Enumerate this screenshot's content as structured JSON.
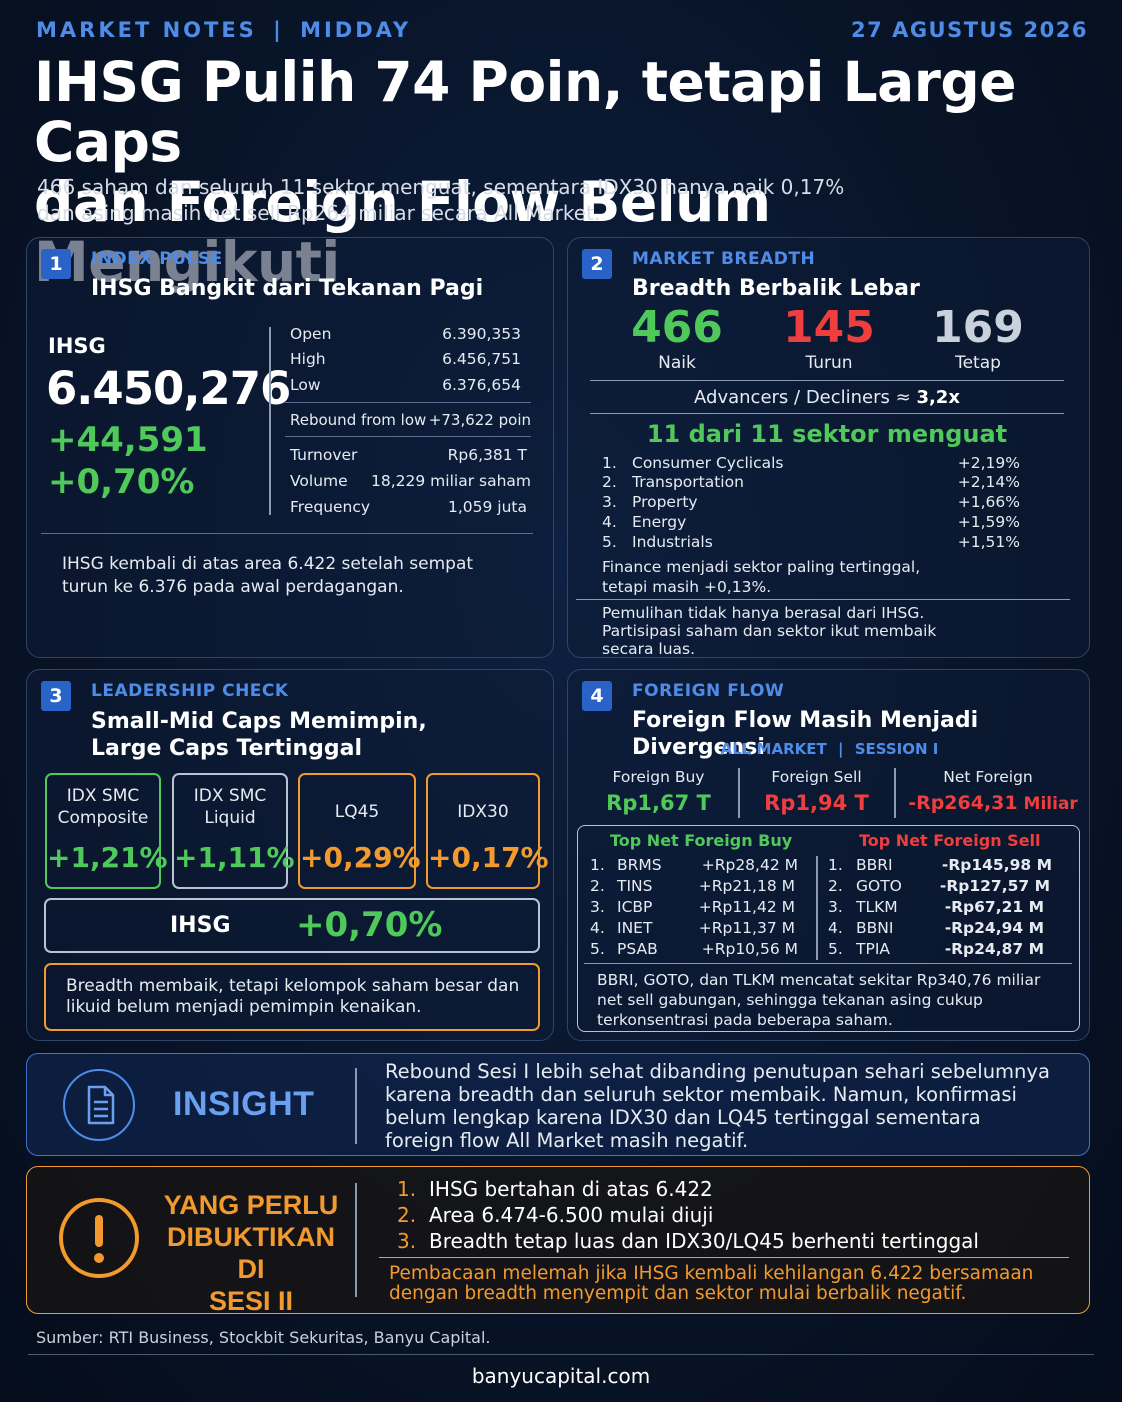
{
  "header": {
    "kicker_left": "MARKET NOTES",
    "kicker_sep": "|",
    "kicker_right": "MIDDAY",
    "date": "27 AGUSTUS 2026",
    "headline_line1": "IHSG Pulih 74 Poin, tetapi Large Caps",
    "headline_line2": "dan Foreign Flow Belum Mengikuti",
    "sub_line1": "466 saham dan seluruh 11 sektor menguat, sementara IDX30 hanya naik 0,17%",
    "sub_line2": "dan asing masih net sell Rp264 miliar secara All Market."
  },
  "panel1": {
    "number": "1",
    "tag": "INDEX PULSE",
    "title": "IHSG Bangkit dari Tekanan Pagi",
    "index_name": "IHSG",
    "index_value": "6.450,276",
    "change_points": "+44,591",
    "change_pct": "+0,70%",
    "stats": [
      {
        "label": "Open",
        "value": "6.390,353"
      },
      {
        "label": "High",
        "value": "6.456,751"
      },
      {
        "label": "Low",
        "value": "6.376,654"
      }
    ],
    "rebound_label": "Rebound from low",
    "rebound_value": "+73,622 poin",
    "activity": [
      {
        "label": "Turnover",
        "value": "Rp6,381 T"
      },
      {
        "label": "Volume",
        "value": "18,229 miliar saham"
      },
      {
        "label": "Frequency",
        "value": "1,059 juta"
      }
    ],
    "note_line1": "IHSG kembali di atas area 6.422 setelah sempat",
    "note_line2": "turun ke 6.376 pada awal perdagangan."
  },
  "panel2": {
    "number": "2",
    "tag": "MARKET BREADTH",
    "title": "Breadth Berbalik Lebar",
    "up_value": "466",
    "up_label": "Naik",
    "down_value": "145",
    "down_label": "Turun",
    "flat_value": "169",
    "flat_label": "Tetap",
    "ratio_label": "Advancers / Decliners ≈ ",
    "ratio_value": "3,2x",
    "sectors_title": "11 dari 11 sektor menguat",
    "sectors": [
      {
        "rank": "1.",
        "name": "Consumer Cyclicals",
        "pct": "+2,19%"
      },
      {
        "rank": "2.",
        "name": "Transportation",
        "pct": "+2,14%"
      },
      {
        "rank": "3.",
        "name": "Property",
        "pct": "+1,66%"
      },
      {
        "rank": "4.",
        "name": "Energy",
        "pct": "+1,59%"
      },
      {
        "rank": "5.",
        "name": "Industrials",
        "pct": "+1,51%"
      }
    ],
    "finance_line1": "Finance menjadi sektor paling tertinggal,",
    "finance_line2": "tetapi masih +0,13%.",
    "note_line1": "Pemulihan tidak hanya berasal dari IHSG.",
    "note_line2": "Partisipasi saham dan sektor ikut membaik",
    "note_line3": "secara luas."
  },
  "panel3": {
    "number": "3",
    "tag": "LEADERSHIP CHECK",
    "title_line1": "Small-Mid Caps Memimpin,",
    "title_line2": "Large Caps Tertinggal",
    "boxes": [
      {
        "line1": "IDX SMC",
        "line2": "Composite",
        "value": "+1,21%"
      },
      {
        "line1": "IDX SMC",
        "line2": "Liquid",
        "value": "+1,11%"
      },
      {
        "line1": "LQ45",
        "line2": "",
        "value": "+0,29%"
      },
      {
        "line1": "IDX30",
        "line2": "",
        "value": "+0,17%"
      }
    ],
    "ihsg_label": "IHSG",
    "ihsg_value": "+0,70%",
    "note_line1": "Breadth membaik, tetapi kelompok saham besar dan",
    "note_line2": "likuid belum menjadi pemimpin kenaikan."
  },
  "panel4": {
    "number": "4",
    "tag": "FOREIGN FLOW",
    "title": "Foreign Flow Masih Menjadi Divergensi",
    "scope_left": "ALL MARKET",
    "scope_sep": "|",
    "scope_right": "SESSION I",
    "buy_label": "Foreign Buy",
    "buy_value": "Rp1,67 T",
    "sell_label": "Foreign Sell",
    "sell_value": "Rp1,94 T",
    "net_label": "Net Foreign",
    "net_value": "-Rp264,31",
    "net_unit": " Miliar",
    "top_buy_title": "Top Net Foreign Buy",
    "top_sell_title": "Top Net Foreign Sell",
    "top_buy": [
      {
        "rank": "1.",
        "ticker": "BRMS",
        "value": "+Rp28,42 M"
      },
      {
        "rank": "2.",
        "ticker": "TINS",
        "value": "+Rp21,18 M"
      },
      {
        "rank": "3.",
        "ticker": "ICBP",
        "value": "+Rp11,42 M"
      },
      {
        "rank": "4.",
        "ticker": "INET",
        "value": "+Rp11,37 M"
      },
      {
        "rank": "5.",
        "ticker": "PSAB",
        "value": "+Rp10,56 M"
      }
    ],
    "top_sell": [
      {
        "rank": "1.",
        "ticker": "BBRI",
        "value": "-Rp145,98 M"
      },
      {
        "rank": "2.",
        "ticker": "GOTO",
        "value": "-Rp127,57 M"
      },
      {
        "rank": "3.",
        "ticker": "TLKM",
        "value": "-Rp67,21 M"
      },
      {
        "rank": "4.",
        "ticker": "BBNI",
        "value": "-Rp24,94 M"
      },
      {
        "rank": "5.",
        "ticker": "TPIA",
        "value": "-Rp24,87 M"
      }
    ],
    "note_line1": "BBRI, GOTO, dan TLKM mencatat sekitar Rp340,76 miliar",
    "note_line2": "net sell gabungan, sehingga tekanan asing cukup",
    "note_line3": "terkonsentrasi pada beberapa saham."
  },
  "insight": {
    "label": "INSIGHT",
    "icon": "document-icon",
    "line1": "Rebound Sesi I lebih sehat dibanding penutupan sehari sebelumnya",
    "line2": "karena breadth dan seluruh sektor membaik. Namun, konfirmasi",
    "line3": "belum lengkap karena IDX30 dan LQ45 tertinggal sementara",
    "line4": "foreign flow All Market masih negatif."
  },
  "watch": {
    "label_line1": "YANG PERLU",
    "label_line2": "DIBUKTIKAN DI",
    "label_line3": "SESI II",
    "icon": "exclamation-icon",
    "items": [
      {
        "rank": "1.",
        "text": "IHSG bertahan di atas 6.422"
      },
      {
        "rank": "2.",
        "text": "Area 6.474-6.500 mulai diuji"
      },
      {
        "rank": "3.",
        "text": "Breadth tetap luas dan IDX30/LQ45 berhenti tertinggal"
      }
    ],
    "warn_line1": "Pembacaan melemah jika IHSG kembali kehilangan 6.422 bersamaan",
    "warn_line2": "dengan breadth menyempit dan sektor mulai berbalik negatif."
  },
  "footer": {
    "source": "Sumber: RTI Business, Stockbit Sekuritas, Banyu Capital.",
    "site": "banyucapital.com"
  }
}
